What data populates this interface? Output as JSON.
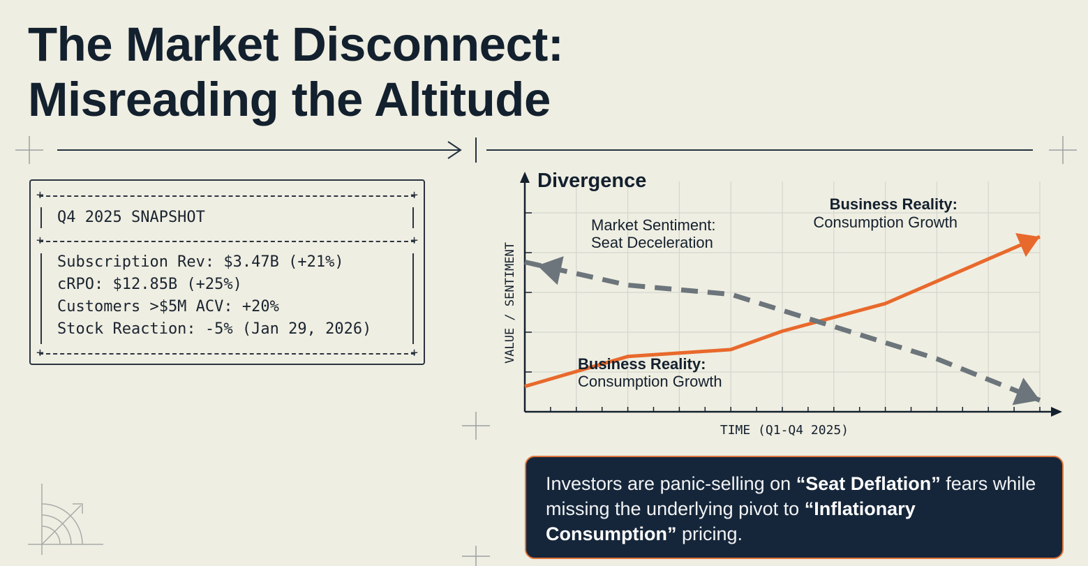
{
  "title": {
    "line1": "The Market Disconnect:",
    "line2": "Misreading the Altitude"
  },
  "snapshot": {
    "heading": "Q4 2025 SNAPSHOT",
    "rows": [
      "Subscription Rev: $3.47B (+21%)",
      "cRPO: $12.85B (+25%)",
      "Customers >$5M ACV: +20%",
      "Stock Reaction: -5% (Jan 29, 2026)"
    ]
  },
  "chart_data": {
    "type": "line",
    "title": "Divergence",
    "xlabel": "TIME (Q1-Q4 2025)",
    "ylabel": "VALUE / SENTIMENT",
    "grid": true,
    "xlim": [
      0,
      10
    ],
    "ylim": [
      0,
      10
    ],
    "series": [
      {
        "name": "Business Reality: Consumption Growth",
        "style": "solid",
        "color": "#e8692c",
        "x": [
          0,
          2,
          4,
          5,
          7,
          10
        ],
        "y": [
          1.1,
          2.4,
          2.7,
          3.5,
          4.7,
          7.6
        ]
      },
      {
        "name": "Market Sentiment: Seat Deceleration",
        "style": "dashed",
        "color": "#6c757b",
        "x": [
          0,
          2,
          4,
          6,
          8,
          10
        ],
        "y": [
          6.5,
          5.5,
          5.1,
          3.7,
          2.3,
          0.5
        ]
      }
    ],
    "annotations": [
      {
        "line1": "Business Reality:",
        "line2": "Consumption Growth"
      },
      {
        "line1": "Market Sentiment:",
        "line2": "Seat Deceleration"
      },
      {
        "line1": "Business Reality:",
        "line2": "Consumption Growth"
      }
    ]
  },
  "callout": {
    "t1": "Investors are panic-selling on ",
    "t2": "“Seat Deflation”",
    "t3": " fears while missing the underlying pivot to ",
    "t4": "“Inflationary Consumption”",
    "t5": " pricing."
  },
  "colors": {
    "background": "#efeee2",
    "ink": "#13202e",
    "accent": "#e8692c",
    "muted": "#6c757b",
    "panel": "#16263a"
  }
}
